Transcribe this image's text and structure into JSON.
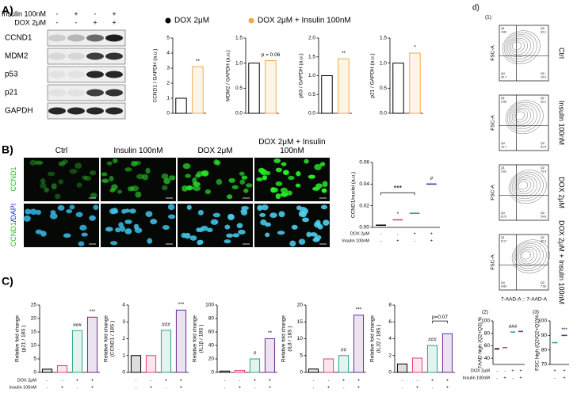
{
  "panel_a": {
    "label": "A)",
    "blot": {
      "conditions": [
        {
          "label": "Insulin 100nM",
          "signs": [
            "-",
            "+",
            "-",
            "+"
          ]
        },
        {
          "label": "DOX 2μM",
          "signs": [
            "-",
            "-",
            "+",
            "+"
          ]
        }
      ],
      "rows": [
        "CCND1",
        "MDM2",
        "p53",
        "p21",
        "GAPDH"
      ]
    },
    "legend": [
      {
        "name": "DOX 2μM",
        "color": "#000000"
      },
      {
        "name": "DOX 2μM + Insulin 100nM",
        "color": "#f0a848"
      }
    ],
    "charts": [
      {
        "ylabel": [
          "CCND1 / GAPDH (a.u.)"
        ],
        "values": [
          1,
          3.1
        ],
        "ylim": [
          0,
          5
        ],
        "yticks": [
          0,
          1,
          2,
          3,
          4,
          5
        ],
        "annotations": [
          null,
          "**"
        ]
      },
      {
        "ylabel": [
          "MDM2 / GAPDH (a.u.)"
        ],
        "values": [
          1,
          1.05
        ],
        "ylim": [
          0,
          1.5
        ],
        "yticks": [
          {
            "value": 0,
            "label": "0.0"
          },
          {
            "value": 0.5,
            "label": "0.5"
          },
          {
            "value": 1,
            "label": "1.0"
          },
          {
            "value": 1.5,
            "label": "1.5"
          }
        ],
        "annotations": [
          null,
          "p = 0.06"
        ]
      },
      {
        "ylabel": [
          "p53 / GAPDH (a.u.)"
        ],
        "values": [
          1,
          1.45
        ],
        "ylim": [
          0,
          2
        ],
        "yticks": [
          {
            "value": 0,
            "label": "0.0"
          },
          {
            "value": 0.5,
            "label": "0.5"
          },
          {
            "value": 1,
            "label": "1.0"
          },
          {
            "value": 1.5,
            "label": "1.5"
          },
          {
            "value": 2,
            "label": "2.0"
          }
        ],
        "annotations": [
          null,
          "**"
        ]
      },
      {
        "ylabel": [
          "p21 / GAPDH (a.u.)"
        ],
        "values": [
          1,
          1.2
        ],
        "ylim": [
          0,
          1.5
        ],
        "yticks": [
          {
            "value": 0,
            "label": "0.0"
          },
          {
            "value": 0.5,
            "label": "0.5"
          },
          {
            "value": 1,
            "label": "1.0"
          },
          {
            "value": 1.5,
            "label": "1.5"
          }
        ],
        "annotations": [
          null,
          "*"
        ]
      }
    ]
  },
  "panel_b": {
    "label": "B)",
    "columns": [
      "Ctrl",
      "Insulin 100nM",
      "DOX 2μM",
      "DOX 2μM + Insulin 100nM"
    ],
    "rows": [
      {
        "parts": [
          {
            "text": "CCND1",
            "color": "#22bb22"
          }
        ]
      },
      {
        "parts": [
          {
            "text": "CCND1",
            "color": "#22bb22"
          },
          {
            "text": "/",
            "color": "#000000"
          },
          {
            "text": "DAPI",
            "color": "#2233ee"
          }
        ]
      }
    ],
    "chart": {
      "ylabel": [
        "CCND1/nuclei (a.u.)"
      ],
      "values": [
        0.002,
        0.007,
        0.013,
        0.04
      ],
      "colors": [
        "#000000",
        "#e8407a",
        "#2aa58a",
        "#6a2d91"
      ],
      "ylim": [
        0,
        0.06
      ],
      "yticks": [
        {
          "value": 0,
          "label": "0.00"
        },
        {
          "value": 0.02,
          "label": "0.02"
        },
        {
          "value": 0.04,
          "label": "0.04"
        },
        {
          "value": 0.06,
          "label": "0.06"
        }
      ],
      "annotations": [
        null,
        "*",
        null,
        "#"
      ],
      "overall_annotation": "***",
      "conditions": [
        {
          "label": "DOX 2μM",
          "signs": [
            "-",
            "-",
            "+",
            "+"
          ]
        },
        {
          "label": "Insulin 100nM",
          "signs": [
            "-",
            "+",
            "-",
            "+"
          ]
        }
      ]
    }
  },
  "panel_c": {
    "label": "C)",
    "colors": [
      "#000000",
      "#e8407a",
      "#2aa58a",
      "#6a2d91"
    ],
    "conditions": [
      {
        "label": "DOX 2μM",
        "signs": [
          "-",
          "-",
          "+",
          "+"
        ]
      },
      {
        "label": "Insulin 100nM",
        "signs": [
          "-",
          "+",
          "-",
          "+"
        ]
      }
    ],
    "charts": [
      {
        "ylabel": [
          "Relative fold change",
          "(p21 / 18S )"
        ],
        "values": [
          1.2,
          2.5,
          15.5,
          20.5
        ],
        "ylim": [
          0,
          25
        ],
        "yticks": [
          0,
          5,
          10,
          15,
          20,
          25
        ],
        "annotations": [
          null,
          null,
          "###",
          "***"
        ]
      },
      {
        "ylabel": [
          "Relative fold change",
          "(CCND1 / 18S )"
        ],
        "values": [
          1,
          1,
          2.5,
          3.7
        ],
        "ylim": [
          0,
          4
        ],
        "yticks": [
          0,
          1,
          2,
          3,
          4
        ],
        "annotations": [
          null,
          null,
          "###",
          "***"
        ]
      },
      {
        "ylabel": [
          "Relative fold change",
          "(IL1β / 18S )"
        ],
        "values": [
          2,
          3,
          20,
          50
        ],
        "ylim": [
          0,
          100
        ],
        "yticks": [
          0,
          20,
          40,
          60,
          80,
          100
        ],
        "annotations": [
          null,
          null,
          "#",
          "**"
        ]
      },
      {
        "ylabel": [
          "Relative fold change",
          "(IL8 / 18S )"
        ],
        "values": [
          1,
          4,
          5,
          17
        ],
        "ylim": [
          0,
          20
        ],
        "yticks": [
          0,
          5,
          10,
          15,
          20
        ],
        "annotations": [
          null,
          null,
          "##",
          "***"
        ]
      },
      {
        "ylabel": [
          "Relative fold change",
          "(IL32 / 18S )"
        ],
        "values": [
          1,
          1.7,
          3.2,
          4.6
        ],
        "ylim": [
          0,
          8
        ],
        "yticks": [
          0,
          2,
          4,
          6,
          8
        ],
        "annotations": [
          null,
          null,
          "###",
          null
        ],
        "bracket_annotation": "p=0.07"
      }
    ]
  },
  "panel_d": {
    "label": "d)",
    "sub1": "(1)",
    "ylabel": "FSC-A",
    "xlabel": "7-AAD-A :: 7-AAD-A",
    "plots": [
      {
        "name": "Ctrl",
        "quadrants": [
          {
            "name": "Q1",
            "value": 4.83
          },
          {
            "name": "Q2",
            "value": 33.1
          },
          {
            "name": "Q4",
            "value": 42.7
          },
          {
            "name": "Q3",
            "value": 19.4
          }
        ]
      },
      {
        "name": "Insulin 100nM",
        "quadrants": [
          {
            "name": "Q1",
            "value": 2.65
          },
          {
            "name": "Q2",
            "value": 32.2
          },
          {
            "name": "Q4",
            "value": 13.7
          },
          {
            "name": "Q3",
            "value": 51.5
          }
        ]
      },
      {
        "name": "DOX 2μM",
        "quadrants": [
          {
            "name": "Q1",
            "value": 3.61
          },
          {
            "name": "Q2",
            "value": 73.4
          },
          {
            "name": "Q4",
            "value": 8.73
          },
          {
            "name": "Q3",
            "value": 14.8
          }
        ]
      },
      {
        "name": "DOX 2μM + Insulin 100nM",
        "quadrants": [
          {
            "name": "Q1",
            "value": 5.17
          },
          {
            "name": "Q2",
            "value": 82.3
          },
          {
            "name": "Q4",
            "value": 4.83
          },
          {
            "name": "Q3",
            "value": 7.53
          }
        ]
      }
    ],
    "sub2": {
      "label": "(2)",
      "ylabel": [
        "7AAD high (Q2+Q3) %"
      ],
      "values": [
        55,
        57,
        82,
        83
      ],
      "colors": [
        "#000000",
        "#e8407a",
        "#2aa58a",
        "#6a2d91"
      ],
      "ylim": [
        30,
        100
      ],
      "yticks": [
        40,
        60,
        80,
        100
      ],
      "annotations": [
        null,
        null,
        "###",
        null
      ],
      "conditions": [
        {
          "label": "DOX 2μM",
          "signs": [
            "-",
            "-",
            "+",
            "+"
          ]
        },
        {
          "label": "Insulin 100nM",
          "signs": [
            "-",
            "+",
            "-",
            "+"
          ]
        }
      ]
    },
    "sub3": {
      "label": "(3)",
      "ylabel": [
        "FSC high (Q2/Q2+Q1)%"
      ],
      "values": [
        85,
        90
      ],
      "colors": [
        "#2aa58a",
        "#6a2d91"
      ],
      "ylim": [
        70,
        100
      ],
      "yticks": [
        70,
        80,
        90,
        100
      ],
      "annotations": [
        null,
        "***"
      ],
      "conditions": [
        {
          "label": "DOX 2μM",
          "signs": [
            "+",
            "+"
          ]
        },
        {
          "label": "Insulin 100nM",
          "signs": [
            "-",
            "+"
          ]
        }
      ]
    }
  }
}
